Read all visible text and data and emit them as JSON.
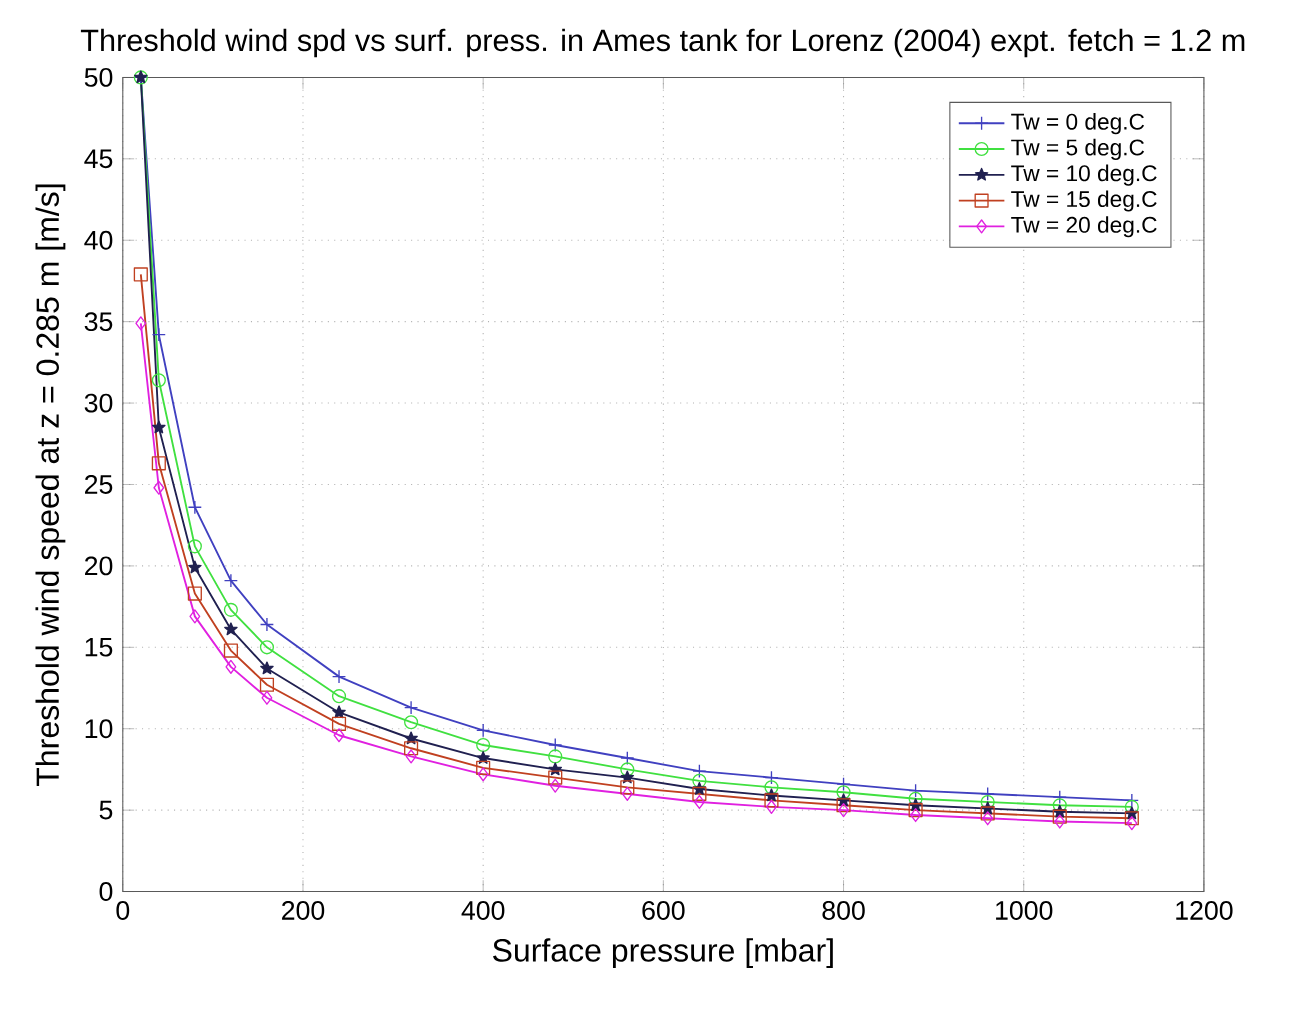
{
  "chart_data": {
    "type": "line",
    "title": "Threshold wind spd vs surf. press. in Ames tank for Lorenz (2004) expt. fetch = 1.2 m",
    "xlabel": "Surface pressure [mbar]",
    "ylabel": "Threshold wind speed at z = 0.285 m [m/s]",
    "x": [
      20,
      40,
      80,
      120,
      160,
      240,
      320,
      400,
      480,
      560,
      640,
      720,
      800,
      880,
      960,
      1040,
      1120
    ],
    "series": [
      {
        "name": "Tw = 0 deg.C",
        "color": "#4040c0",
        "marker": "cross",
        "values": [
          50,
          34.2,
          23.6,
          19.1,
          16.4,
          13.2,
          11.3,
          9.9,
          9.0,
          8.2,
          7.4,
          7.0,
          6.6,
          6.2,
          6.0,
          5.8,
          5.6
        ]
      },
      {
        "name": "Tw = 5 deg.C",
        "color": "#40e040",
        "marker": "circle",
        "values": [
          50,
          31.4,
          21.2,
          17.3,
          15.0,
          12.0,
          10.4,
          9.0,
          8.3,
          7.5,
          6.8,
          6.4,
          6.1,
          5.7,
          5.5,
          5.3,
          5.2
        ]
      },
      {
        "name": "Tw = 10 deg.C",
        "color": "#202050",
        "marker": "star",
        "values": [
          50,
          28.5,
          19.9,
          16.1,
          13.7,
          11.0,
          9.4,
          8.2,
          7.5,
          7.0,
          6.3,
          5.9,
          5.6,
          5.3,
          5.1,
          4.9,
          4.8
        ]
      },
      {
        "name": "Tw = 15 deg.C",
        "color": "#c04020",
        "marker": "square",
        "values": [
          37.9,
          26.3,
          18.3,
          14.8,
          12.7,
          10.3,
          8.8,
          7.6,
          7.0,
          6.4,
          6.0,
          5.6,
          5.3,
          5.0,
          4.8,
          4.6,
          4.5
        ]
      },
      {
        "name": "Tw = 20 deg.C",
        "color": "#e020e0",
        "marker": "diamond",
        "values": [
          34.9,
          24.8,
          16.9,
          13.8,
          11.9,
          9.6,
          8.3,
          7.2,
          6.5,
          6.0,
          5.5,
          5.2,
          5.0,
          4.7,
          4.5,
          4.3,
          4.2
        ]
      }
    ],
    "xlim": [
      0,
      1200
    ],
    "xticks": [
      0,
      200,
      400,
      600,
      800,
      1000,
      1200
    ],
    "ylim": [
      0,
      50
    ],
    "yticks": [
      0,
      5,
      10,
      15,
      20,
      25,
      30,
      35,
      40,
      45,
      50
    ],
    "grid": true,
    "legend": "top right",
    "line_style": "solid"
  }
}
